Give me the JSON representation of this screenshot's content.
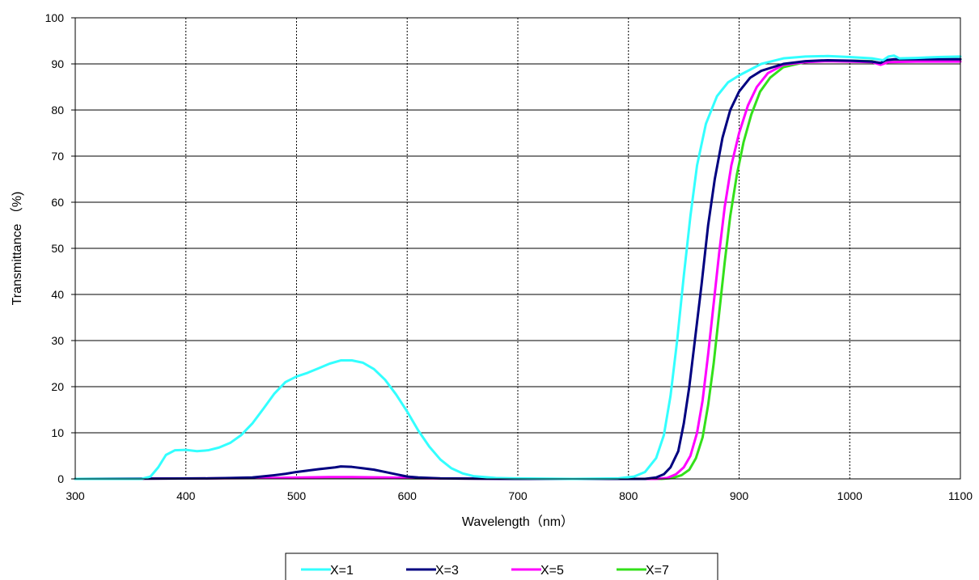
{
  "chart_data": {
    "type": "line",
    "title": "",
    "xlabel": "Wavelength（nm）",
    "ylabel": "Transmittance （%)",
    "xlim": [
      300,
      1100
    ],
    "ylim": [
      0,
      100
    ],
    "x_ticks": [
      300,
      400,
      500,
      600,
      700,
      800,
      900,
      1000,
      1100
    ],
    "y_ticks": [
      0,
      10,
      20,
      30,
      40,
      50,
      60,
      70,
      80,
      90,
      100
    ],
    "grid": "vertical",
    "legend_position": "bottom",
    "series": [
      {
        "name": "X=1",
        "color": "#33ffff",
        "points": [
          [
            300,
            0
          ],
          [
            360,
            0
          ],
          [
            368,
            0.5
          ],
          [
            375,
            2.5
          ],
          [
            382,
            5.2
          ],
          [
            390,
            6.2
          ],
          [
            400,
            6.3
          ],
          [
            410,
            6.0
          ],
          [
            420,
            6.2
          ],
          [
            430,
            6.8
          ],
          [
            440,
            7.8
          ],
          [
            450,
            9.5
          ],
          [
            460,
            12.0
          ],
          [
            470,
            15.2
          ],
          [
            480,
            18.5
          ],
          [
            490,
            21.0
          ],
          [
            500,
            22.2
          ],
          [
            510,
            23.0
          ],
          [
            520,
            24.0
          ],
          [
            530,
            25.0
          ],
          [
            540,
            25.7
          ],
          [
            550,
            25.7
          ],
          [
            560,
            25.2
          ],
          [
            570,
            23.8
          ],
          [
            580,
            21.5
          ],
          [
            590,
            18.3
          ],
          [
            600,
            14.6
          ],
          [
            610,
            10.5
          ],
          [
            620,
            7.0
          ],
          [
            630,
            4.2
          ],
          [
            640,
            2.3
          ],
          [
            650,
            1.2
          ],
          [
            660,
            0.6
          ],
          [
            680,
            0.2
          ],
          [
            700,
            0.1
          ],
          [
            750,
            0
          ],
          [
            790,
            0.1
          ],
          [
            805,
            0.5
          ],
          [
            815,
            1.5
          ],
          [
            825,
            4.5
          ],
          [
            832,
            9.5
          ],
          [
            838,
            18
          ],
          [
            844,
            30
          ],
          [
            850,
            44
          ],
          [
            856,
            57
          ],
          [
            862,
            68
          ],
          [
            870,
            77
          ],
          [
            880,
            83
          ],
          [
            890,
            86
          ],
          [
            900,
            87.5
          ],
          [
            920,
            90
          ],
          [
            940,
            91.2
          ],
          [
            960,
            91.6
          ],
          [
            980,
            91.7
          ],
          [
            1000,
            91.5
          ],
          [
            1020,
            91.2
          ],
          [
            1030,
            90.8
          ],
          [
            1035,
            91.6
          ],
          [
            1040,
            91.8
          ],
          [
            1045,
            91.2
          ],
          [
            1060,
            91.3
          ],
          [
            1080,
            91.5
          ],
          [
            1100,
            91.6
          ]
        ]
      },
      {
        "name": "X=3",
        "color": "#000080",
        "points": [
          [
            300,
            0
          ],
          [
            420,
            0.1
          ],
          [
            440,
            0.2
          ],
          [
            460,
            0.3
          ],
          [
            480,
            0.8
          ],
          [
            490,
            1.1
          ],
          [
            500,
            1.5
          ],
          [
            510,
            1.8
          ],
          [
            520,
            2.1
          ],
          [
            535,
            2.5
          ],
          [
            540,
            2.7
          ],
          [
            550,
            2.6
          ],
          [
            560,
            2.3
          ],
          [
            570,
            2.0
          ],
          [
            580,
            1.5
          ],
          [
            590,
            1.0
          ],
          [
            600,
            0.5
          ],
          [
            610,
            0.3
          ],
          [
            630,
            0.1
          ],
          [
            700,
            0
          ],
          [
            815,
            0
          ],
          [
            825,
            0.3
          ],
          [
            832,
            1.0
          ],
          [
            838,
            2.5
          ],
          [
            845,
            6
          ],
          [
            850,
            12
          ],
          [
            855,
            20
          ],
          [
            860,
            30
          ],
          [
            866,
            42
          ],
          [
            872,
            55
          ],
          [
            878,
            65
          ],
          [
            885,
            74
          ],
          [
            892,
            80
          ],
          [
            900,
            84
          ],
          [
            910,
            87
          ],
          [
            920,
            88.5
          ],
          [
            940,
            90
          ],
          [
            960,
            90.6
          ],
          [
            980,
            90.8
          ],
          [
            1000,
            90.7
          ],
          [
            1020,
            90.5
          ],
          [
            1028,
            90.2
          ],
          [
            1032,
            90.8
          ],
          [
            1040,
            91.0
          ],
          [
            1060,
            91.0
          ],
          [
            1080,
            91.0
          ],
          [
            1100,
            91.0
          ]
        ]
      },
      {
        "name": "X=5",
        "color": "#ff00ff",
        "points": [
          [
            300,
            0
          ],
          [
            420,
            0.1
          ],
          [
            480,
            0.2
          ],
          [
            530,
            0.4
          ],
          [
            550,
            0.4
          ],
          [
            580,
            0.3
          ],
          [
            620,
            0.1
          ],
          [
            700,
            0
          ],
          [
            825,
            0
          ],
          [
            835,
            0.2
          ],
          [
            843,
            1.0
          ],
          [
            850,
            2.5
          ],
          [
            856,
            5
          ],
          [
            862,
            10
          ],
          [
            867,
            17
          ],
          [
            872,
            27
          ],
          [
            877,
            38
          ],
          [
            882,
            49
          ],
          [
            887,
            59
          ],
          [
            893,
            68
          ],
          [
            900,
            75
          ],
          [
            908,
            81
          ],
          [
            916,
            85
          ],
          [
            926,
            88
          ],
          [
            940,
            89.8
          ],
          [
            960,
            90.4
          ],
          [
            980,
            90.6
          ],
          [
            1000,
            90.5
          ],
          [
            1020,
            90.4
          ],
          [
            1028,
            89.8
          ],
          [
            1035,
            90.4
          ],
          [
            1060,
            90.5
          ],
          [
            1080,
            90.5
          ],
          [
            1100,
            90.5
          ]
        ]
      },
      {
        "name": "X=7",
        "color": "#33e01a",
        "points": [
          [
            300,
            0
          ],
          [
            420,
            0.1
          ],
          [
            480,
            0.2
          ],
          [
            530,
            0.3
          ],
          [
            550,
            0.3
          ],
          [
            580,
            0.2
          ],
          [
            620,
            0.1
          ],
          [
            700,
            0
          ],
          [
            830,
            0
          ],
          [
            840,
            0.2
          ],
          [
            848,
            0.8
          ],
          [
            855,
            2.0
          ],
          [
            861,
            4.5
          ],
          [
            867,
            9
          ],
          [
            872,
            16
          ],
          [
            877,
            25
          ],
          [
            882,
            36
          ],
          [
            887,
            47
          ],
          [
            892,
            57
          ],
          [
            898,
            66
          ],
          [
            904,
            73
          ],
          [
            911,
            79
          ],
          [
            919,
            84
          ],
          [
            928,
            87
          ],
          [
            940,
            89.3
          ],
          [
            960,
            90.4
          ],
          [
            980,
            90.7
          ],
          [
            1000,
            90.7
          ],
          [
            1020,
            90.6
          ],
          [
            1028,
            90.1
          ],
          [
            1035,
            90.8
          ],
          [
            1060,
            90.9
          ],
          [
            1080,
            91.0
          ],
          [
            1100,
            91.0
          ]
        ]
      }
    ]
  }
}
